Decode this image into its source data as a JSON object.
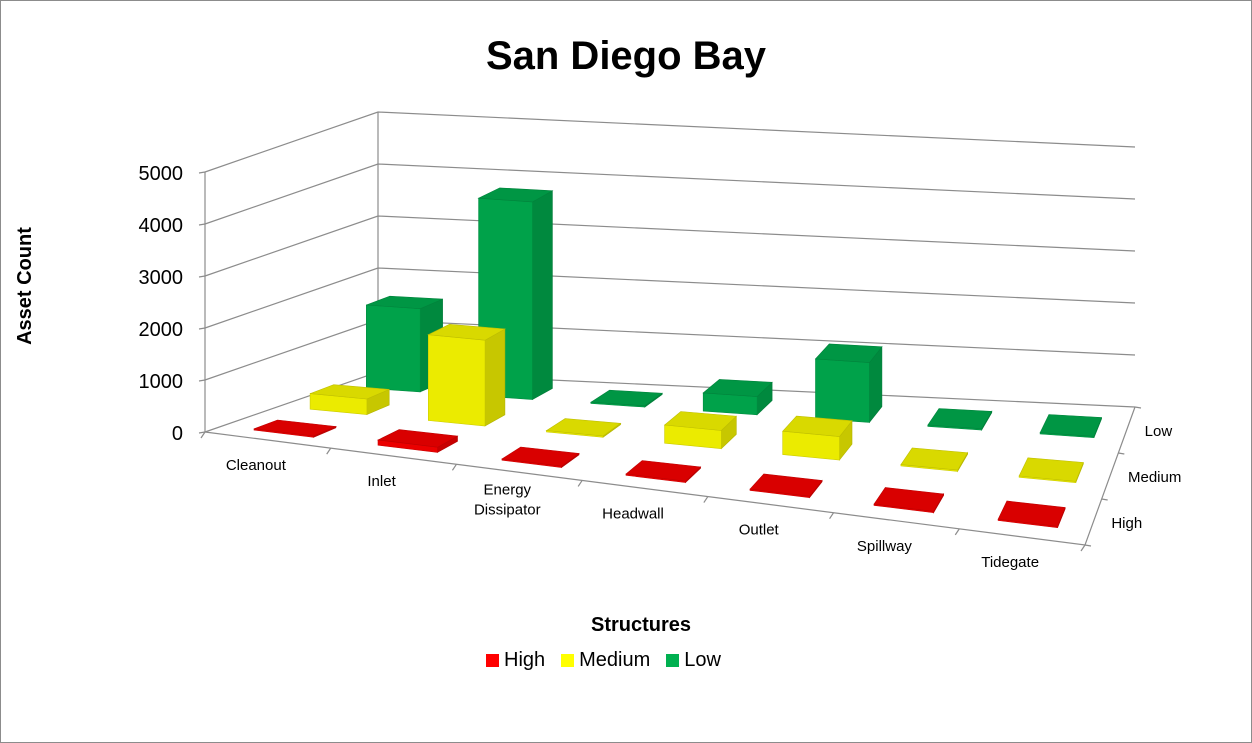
{
  "chart_data": {
    "type": "bar",
    "variant": "3d-column",
    "title": "San Diego Bay",
    "xlabel": "Structures",
    "ylabel": "Asset Count",
    "ylim": [
      0,
      5000
    ],
    "yticks": [
      "0",
      "1000",
      "2000",
      "3000",
      "4000",
      "5000"
    ],
    "categories": [
      "Cleanout",
      "Inlet",
      "Energy Dissipator",
      "Headwall",
      "Outlet",
      "Spillway",
      "Tidegate"
    ],
    "depth_labels": [
      "Low",
      "Medium",
      "High"
    ],
    "series": [
      {
        "name": "High",
        "color": "#ff0000",
        "values": [
          0,
          100,
          0,
          0,
          0,
          0,
          0
        ]
      },
      {
        "name": "Medium",
        "color": "#ffff00",
        "values": [
          300,
          1650,
          0,
          350,
          450,
          0,
          0
        ]
      },
      {
        "name": "Low",
        "color": "#00b050",
        "values": [
          1600,
          3800,
          0,
          350,
          1150,
          0,
          0
        ]
      }
    ],
    "grid": true,
    "legend_position": "bottom"
  }
}
